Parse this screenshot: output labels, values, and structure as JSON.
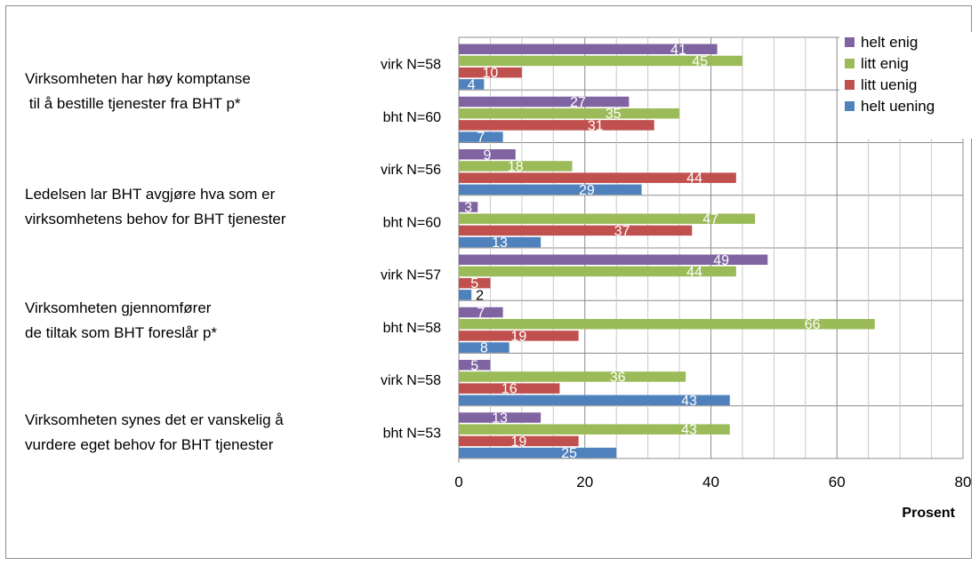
{
  "chart_data": {
    "type": "bar",
    "orientation": "horizontal",
    "xlabel": "Prosent",
    "xlim": [
      0,
      80
    ],
    "x_ticks": [
      "0",
      "20",
      "40",
      "60",
      "80"
    ],
    "grid": true,
    "legend_position": "top-right",
    "groups": [
      {
        "label_lines": [
          "Virksomheten har høy komptanse",
          " til å bestille tjenester fra BHT p*"
        ]
      },
      {
        "label_lines": [
          "Ledelsen lar BHT avgjøre hva som er",
          "virksomhetens behov for BHT tjenester"
        ]
      },
      {
        "label_lines": [
          "Virksomheten gjennomfører",
          "de tiltak som BHT foreslår p*"
        ]
      },
      {
        "label_lines": [
          "Virksomheten synes det er vanskelig å",
          "vurdere eget behov for BHT tjenester"
        ]
      }
    ],
    "categories": [
      "virk N=58",
      "bht N=60",
      "virk N=56",
      "bht N=60",
      "virk N=57",
      "bht N=58",
      "virk N=58",
      "bht N=53"
    ],
    "series": [
      {
        "name": "helt enig",
        "color": "#8064a2",
        "values": [
          41,
          27,
          9,
          3,
          49,
          7,
          5,
          13
        ]
      },
      {
        "name": "litt enig",
        "color": "#9bbb59",
        "values": [
          45,
          35,
          18,
          47,
          44,
          66,
          36,
          43
        ]
      },
      {
        "name": "litt uenig",
        "color": "#c0504d",
        "values": [
          10,
          31,
          44,
          37,
          5,
          19,
          16,
          19
        ]
      },
      {
        "name": "helt uening",
        "color": "#4f81bd",
        "values": [
          4,
          7,
          29,
          13,
          2,
          8,
          43,
          25
        ]
      }
    ]
  }
}
